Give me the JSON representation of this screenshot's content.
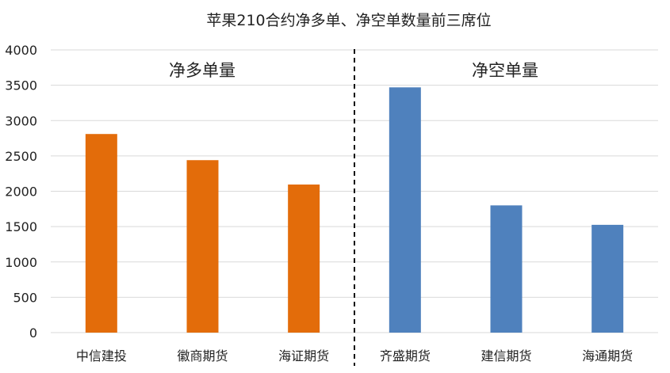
{
  "chart_data": {
    "type": "bar",
    "title": "苹果210合约净多单、净空单数量前三席位",
    "categories": [
      "中信建投",
      "徽商期货",
      "海证期货",
      "齐盛期货",
      "建信期货",
      "海通期货"
    ],
    "values": [
      2810,
      2440,
      2095,
      3470,
      1800,
      1525
    ],
    "bar_colors": [
      "#e36c0a",
      "#e36c0a",
      "#e36c0a",
      "#4f81bd",
      "#4f81bd",
      "#4f81bd"
    ],
    "ylim": [
      0,
      4000
    ],
    "yticks": [
      0,
      500,
      1000,
      1500,
      2000,
      2500,
      3000,
      3500,
      4000
    ],
    "grid": true,
    "annotations": [
      "净多单量",
      "净空单量"
    ],
    "divider": "dashed vertical line between 海证期货 and 齐盛期货"
  }
}
